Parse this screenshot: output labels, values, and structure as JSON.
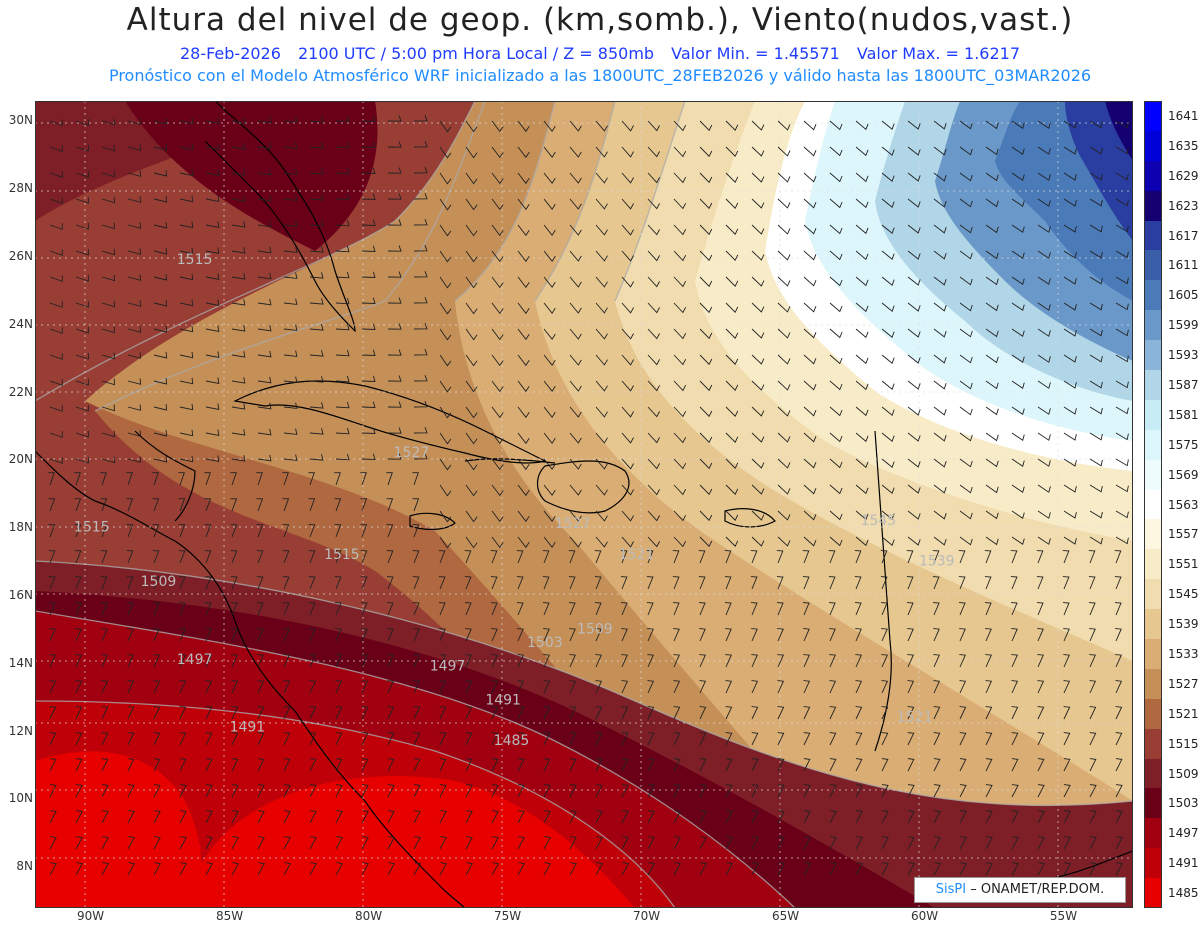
{
  "header": {
    "title": "Altura del nivel de geop. (km,somb.), Viento(nudos,vast.)",
    "date": "28-Feb-2026",
    "time": "2100 UTC / 5:00 pm Hora Local / Z = 850mb",
    "min": "Valor Min. = 1.45571",
    "max": "Valor Max. = 1.6217",
    "model_info": "Pronóstico con el Modelo Atmosférico WRF inicializado a las 1800UTC_28FEB2026 y válido hasta las  1800UTC_03MAR2026"
  },
  "axes": {
    "lat_labels": [
      "30N",
      "28N",
      "26N",
      "24N",
      "22N",
      "20N",
      "18N",
      "16N",
      "14N",
      "12N",
      "10N",
      "8N"
    ],
    "lat_values": [
      30,
      28,
      26,
      24,
      22,
      20,
      18,
      16,
      14,
      12,
      10,
      8
    ],
    "lon_labels": [
      "90W",
      "85W",
      "80W",
      "75W",
      "70W",
      "65W",
      "60W",
      "55W"
    ],
    "lon_values": [
      -90,
      -85,
      -80,
      -75,
      -70,
      -65,
      -60,
      -55
    ],
    "lon_range": [
      -92,
      -52.5
    ],
    "lat_range": [
      6.8,
      30.6
    ]
  },
  "legend": {
    "levels": [
      1641,
      1635,
      1629,
      1623,
      1617,
      1611,
      1605,
      1599,
      1593,
      1587,
      1581,
      1575,
      1569,
      1563,
      1557,
      1551,
      1545,
      1539,
      1533,
      1527,
      1521,
      1515,
      1509,
      1503,
      1497,
      1491,
      1485
    ],
    "colors": [
      "#0000ff",
      "#0000d8",
      "#0c00b0",
      "#140070",
      "#2a3da0",
      "#3a5ea8",
      "#4a7ab8",
      "#6a98c8",
      "#8ab5d8",
      "#b0d6e8",
      "#c8ecf5",
      "#ddf6fb",
      "#eefcfe",
      "#ffffff",
      "#fdf6e0",
      "#f8ecc8",
      "#f0dcae",
      "#e6c790",
      "#d9ad73",
      "#c59058",
      "#b06840",
      "#983e34",
      "#7e1e26",
      "#6a0018",
      "#a00010",
      "#c00008",
      "#e60000"
    ]
  },
  "contour_labels": [
    {
      "text": "1515",
      "lon": -86.9,
      "lat": 25.8
    },
    {
      "text": "1527",
      "lon": -79.1,
      "lat": 20.1
    },
    {
      "text": "1515",
      "lon": -90.6,
      "lat": 17.9
    },
    {
      "text": "1515",
      "lon": -81.6,
      "lat": 17.1
    },
    {
      "text": "1509",
      "lon": -88.2,
      "lat": 16.3
    },
    {
      "text": "1521",
      "lon": -71.0,
      "lat": 17.1
    },
    {
      "text": "1527",
      "lon": -73.3,
      "lat": 18.0
    },
    {
      "text": "1545",
      "lon": -62.3,
      "lat": 18.1
    },
    {
      "text": "1539",
      "lon": -60.2,
      "lat": 16.9
    },
    {
      "text": "1509",
      "lon": -72.5,
      "lat": 14.9
    },
    {
      "text": "1503",
      "lon": -74.3,
      "lat": 14.5
    },
    {
      "text": "1497",
      "lon": -86.9,
      "lat": 14.0
    },
    {
      "text": "1497",
      "lon": -77.8,
      "lat": 13.8
    },
    {
      "text": "1491",
      "lon": -75.8,
      "lat": 12.8
    },
    {
      "text": "1491",
      "lon": -85.0,
      "lat": 12.0
    },
    {
      "text": "1485",
      "lon": -75.5,
      "lat": 11.6
    },
    {
      "text": "1521",
      "lon": -61.0,
      "lat": 12.3
    }
  ],
  "credit": {
    "logo": "SisPI",
    "text": " – ONAMET/REP.DOM."
  }
}
